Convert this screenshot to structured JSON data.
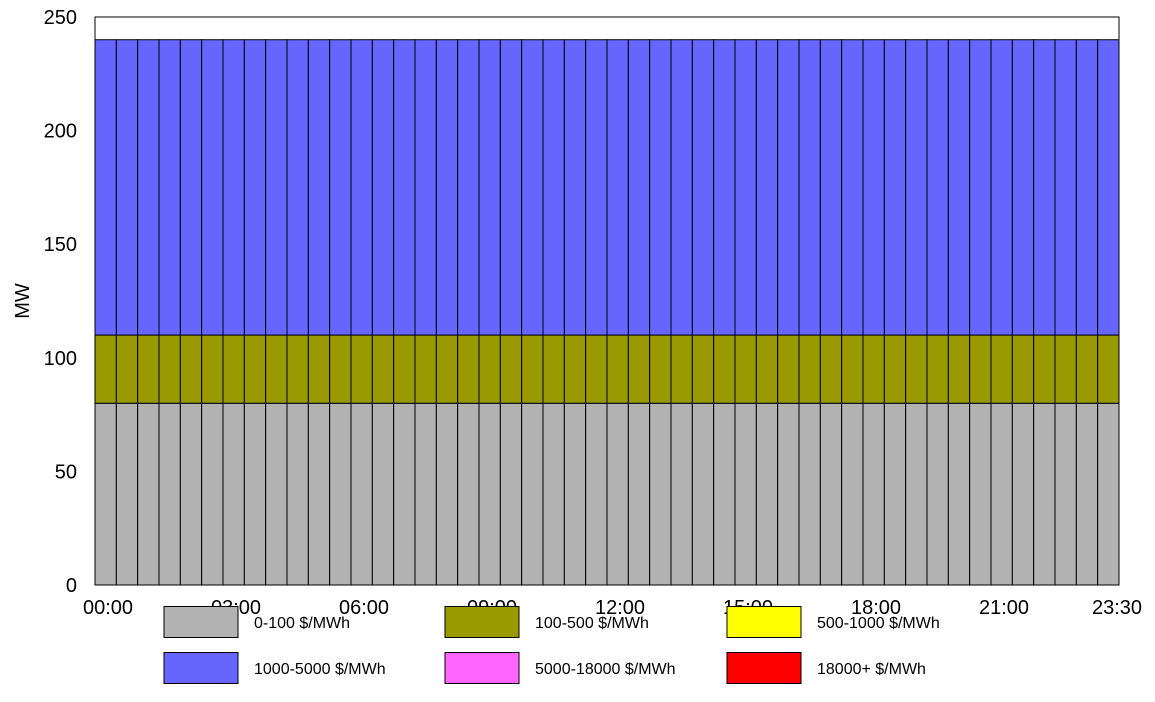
{
  "chart_data": {
    "type": "bar",
    "stacked": true,
    "ylabel": "MW",
    "ylim": [
      0,
      250
    ],
    "yticks": [
      "0",
      "50",
      "100",
      "150",
      "200",
      "250"
    ],
    "xticks": [
      "00:00",
      "03:00",
      "06:00",
      "09:00",
      "12:00",
      "15:00",
      "18:00",
      "21:00",
      "23:30"
    ],
    "categories": [
      "00:00",
      "00:30",
      "01:00",
      "01:30",
      "02:00",
      "02:30",
      "03:00",
      "03:30",
      "04:00",
      "04:30",
      "05:00",
      "05:30",
      "06:00",
      "06:30",
      "07:00",
      "07:30",
      "08:00",
      "08:30",
      "09:00",
      "09:30",
      "10:00",
      "10:30",
      "11:00",
      "11:30",
      "12:00",
      "12:30",
      "13:00",
      "13:30",
      "14:00",
      "14:30",
      "15:00",
      "15:30",
      "16:00",
      "16:30",
      "17:00",
      "17:30",
      "18:00",
      "18:30",
      "19:00",
      "19:30",
      "20:00",
      "20:30",
      "21:00",
      "21:30",
      "22:00",
      "22:30",
      "23:00",
      "23:30"
    ],
    "series": [
      {
        "name": "0-100 $/MWh",
        "color": "#b2b2b2",
        "values": [
          80,
          80,
          80,
          80,
          80,
          80,
          80,
          80,
          80,
          80,
          80,
          80,
          80,
          80,
          80,
          80,
          80,
          80,
          80,
          80,
          80,
          80,
          80,
          80,
          80,
          80,
          80,
          80,
          80,
          80,
          80,
          80,
          80,
          80,
          80,
          80,
          80,
          80,
          80,
          80,
          80,
          80,
          80,
          80,
          80,
          80,
          80,
          80
        ]
      },
      {
        "name": "100-500 $/MWh",
        "color": "#999900",
        "values": [
          30,
          30,
          30,
          30,
          30,
          30,
          30,
          30,
          30,
          30,
          30,
          30,
          30,
          30,
          30,
          30,
          30,
          30,
          30,
          30,
          30,
          30,
          30,
          30,
          30,
          30,
          30,
          30,
          30,
          30,
          30,
          30,
          30,
          30,
          30,
          30,
          30,
          30,
          30,
          30,
          30,
          30,
          30,
          30,
          30,
          30,
          30,
          30
        ]
      },
      {
        "name": "500-1000 $/MWh",
        "color": "#ffff00",
        "values": [
          0,
          0,
          0,
          0,
          0,
          0,
          0,
          0,
          0,
          0,
          0,
          0,
          0,
          0,
          0,
          0,
          0,
          0,
          0,
          0,
          0,
          0,
          0,
          0,
          0,
          0,
          0,
          0,
          0,
          0,
          0,
          0,
          0,
          0,
          0,
          0,
          0,
          0,
          0,
          0,
          0,
          0,
          0,
          0,
          0,
          0,
          0,
          0
        ]
      },
      {
        "name": "1000-5000 $/MWh",
        "color": "#6666ff",
        "values": [
          130,
          130,
          130,
          130,
          130,
          130,
          130,
          130,
          130,
          130,
          130,
          130,
          130,
          130,
          130,
          130,
          130,
          130,
          130,
          130,
          130,
          130,
          130,
          130,
          130,
          130,
          130,
          130,
          130,
          130,
          130,
          130,
          130,
          130,
          130,
          130,
          130,
          130,
          130,
          130,
          130,
          130,
          130,
          130,
          130,
          130,
          130,
          130
        ]
      },
      {
        "name": "5000-18000 $/MWh",
        "color": "#ff66ff",
        "values": [
          0,
          0,
          0,
          0,
          0,
          0,
          0,
          0,
          0,
          0,
          0,
          0,
          0,
          0,
          0,
          0,
          0,
          0,
          0,
          0,
          0,
          0,
          0,
          0,
          0,
          0,
          0,
          0,
          0,
          0,
          0,
          0,
          0,
          0,
          0,
          0,
          0,
          0,
          0,
          0,
          0,
          0,
          0,
          0,
          0,
          0,
          0,
          0
        ]
      },
      {
        "name": "18000+ $/MWh",
        "color": "#ff0000",
        "values": [
          0,
          0,
          0,
          0,
          0,
          0,
          0,
          0,
          0,
          0,
          0,
          0,
          0,
          0,
          0,
          0,
          0,
          0,
          0,
          0,
          0,
          0,
          0,
          0,
          0,
          0,
          0,
          0,
          0,
          0,
          0,
          0,
          0,
          0,
          0,
          0,
          0,
          0,
          0,
          0,
          0,
          0,
          0,
          0,
          0,
          0,
          0,
          0
        ]
      }
    ],
    "grid": false,
    "legend_position": "bottom"
  }
}
